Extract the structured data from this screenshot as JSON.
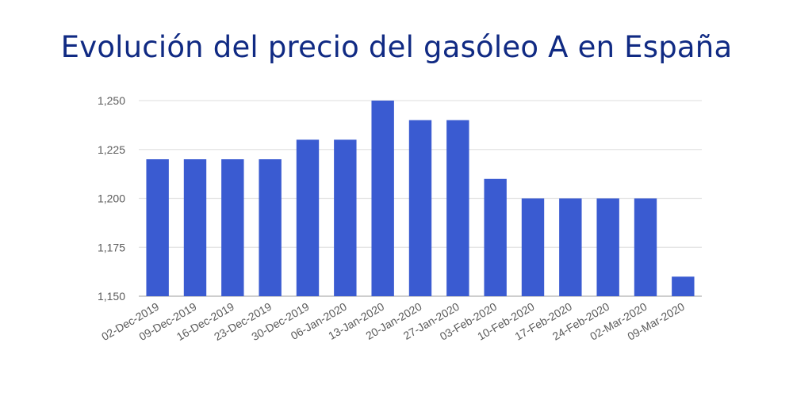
{
  "chart_data": {
    "type": "bar",
    "title": "Evolución del precio del gasóleo A en España",
    "xlabel": "",
    "ylabel": "",
    "categories": [
      "02-Dec-2019",
      "09-Dec-2019",
      "16-Dec-2019",
      "23-Dec-2019",
      "30-Dec-2019",
      "06-Jan-2020",
      "13-Jan-2020",
      "20-Jan-2020",
      "27-Jan-2020",
      "03-Feb-2020",
      "10-Feb-2020",
      "17-Feb-2020",
      "24-Feb-2020",
      "02-Mar-2020",
      "09-Mar-2020"
    ],
    "values": [
      1.22,
      1.22,
      1.22,
      1.22,
      1.23,
      1.23,
      1.25,
      1.24,
      1.24,
      1.21,
      1.2,
      1.2,
      1.2,
      1.2,
      1.16
    ],
    "ylim": [
      1.15,
      1.25
    ],
    "yticks": [
      1.15,
      1.175,
      1.2,
      1.225,
      1.25
    ],
    "ytick_labels": [
      "1,150",
      "1,175",
      "1,200",
      "1,225",
      "1,250"
    ],
    "grid": true,
    "legend": "none",
    "bar_color": "#3a5bd1"
  }
}
